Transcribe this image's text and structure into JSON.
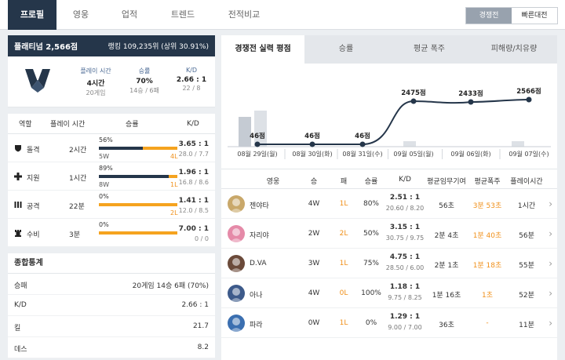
{
  "nav": {
    "tabs": [
      "프로필",
      "영웅",
      "업적",
      "트렌드",
      "전적비교"
    ],
    "mode": {
      "competitive": "경쟁전",
      "quickplay": "빠른대전"
    }
  },
  "tier": {
    "title": "플래티넘 2,566점",
    "ranking": "랭킹 109,235위 (상위 30.91%)",
    "playtime_label": "플레이 시간",
    "playtime": "4시간",
    "playtime_sub": "20게임",
    "winrate_label": "승률",
    "winrate": "70%",
    "winrate_sub": "14승 / 6패",
    "kd_label": "K/D",
    "kd": "2.66 : 1",
    "kd_sub": "22 / 8"
  },
  "roles": {
    "headers": {
      "role": "역할",
      "time": "플레이 시간",
      "winrate": "승률",
      "kd": "K/D"
    },
    "rows": [
      {
        "name": "돌격",
        "icon": "shield-icon",
        "time": "2시간",
        "pct": "56%",
        "fill": 0.56,
        "w": "5W",
        "l": "4L",
        "kd": "3.65 : 1",
        "kd_sub": "28.0 / 7.7"
      },
      {
        "name": "지원",
        "icon": "cross-icon",
        "time": "1시간",
        "pct": "89%",
        "fill": 0.89,
        "w": "8W",
        "l": "1L",
        "kd": "1.96 : 1",
        "kd_sub": "16.8 / 8.6"
      },
      {
        "name": "공격",
        "icon": "bullets-icon",
        "time": "22분",
        "pct": "0%",
        "fill": 0,
        "w": "",
        "l": "2L",
        "kd": "1.41 : 1",
        "kd_sub": "12.0 / 8.5"
      },
      {
        "name": "수비",
        "icon": "tower-icon",
        "time": "3분",
        "pct": "0%",
        "fill": 0,
        "w": "",
        "l": "",
        "kd": "7.00 : 1",
        "kd_sub": "0 / 0"
      }
    ]
  },
  "summary": {
    "title": "종합통계",
    "rows": [
      {
        "k": "승패",
        "v": "20게임 14승 6패 (70%)"
      },
      {
        "k": "K/D",
        "v": "2.66 : 1"
      },
      {
        "k": "킬",
        "v": "21.7"
      },
      {
        "k": "데스",
        "v": "8.2"
      }
    ]
  },
  "right_tabs": [
    "경쟁전 실력 평점",
    "승률",
    "평균 폭주",
    "피해량/치유량"
  ],
  "chart_data": {
    "type": "line",
    "categories": [
      "08월 29일(월)",
      "08월 30일(화)",
      "08월 31일(수)",
      "09월 05일(월)",
      "09월 06일(화)",
      "09월 07일(수)"
    ],
    "values": [
      46,
      46,
      46,
      2475,
      2433,
      2566
    ],
    "point_labels": [
      "46점",
      "46점",
      "46점",
      "2475점",
      "2433점",
      "2566점"
    ]
  },
  "heroes": {
    "headers": [
      "영웅",
      "승",
      "패",
      "승률",
      "K/D",
      "평균임무기여",
      "평균폭주",
      "플레이시간"
    ],
    "rows": [
      {
        "name": "젠야타",
        "w": "4W",
        "l": "1L",
        "rate": "80%",
        "kd": "2.51 : 1",
        "kd_sub": "20.60 / 8.20",
        "obj": "56초",
        "streak": "3분 53초",
        "time": "1시간",
        "color": "#c9a86a"
      },
      {
        "name": "자리야",
        "w": "2W",
        "l": "2L",
        "rate": "50%",
        "kd": "3.15 : 1",
        "kd_sub": "30.75 / 9.75",
        "obj": "2분 4초",
        "streak": "1분 40초",
        "time": "56분",
        "color": "#e58aa8"
      },
      {
        "name": "D.VA",
        "w": "3W",
        "l": "1L",
        "rate": "75%",
        "kd": "4.75 : 1",
        "kd_sub": "28.50 / 6.00",
        "obj": "2분 1초",
        "streak": "1분 18초",
        "time": "55분",
        "color": "#6b4a3a"
      },
      {
        "name": "아나",
        "w": "4W",
        "l": "0L",
        "rate": "100%",
        "kd": "1.18 : 1",
        "kd_sub": "9.75 / 8.25",
        "obj": "1분 16초",
        "streak": "1초",
        "time": "52분",
        "color": "#3d5a8a"
      },
      {
        "name": "파라",
        "w": "0W",
        "l": "1L",
        "rate": "0%",
        "kd": "1.29 : 1",
        "kd_sub": "9.00 / 7.00",
        "obj": "36초",
        "streak": "-",
        "time": "11분",
        "color": "#3b6fb0"
      }
    ]
  }
}
